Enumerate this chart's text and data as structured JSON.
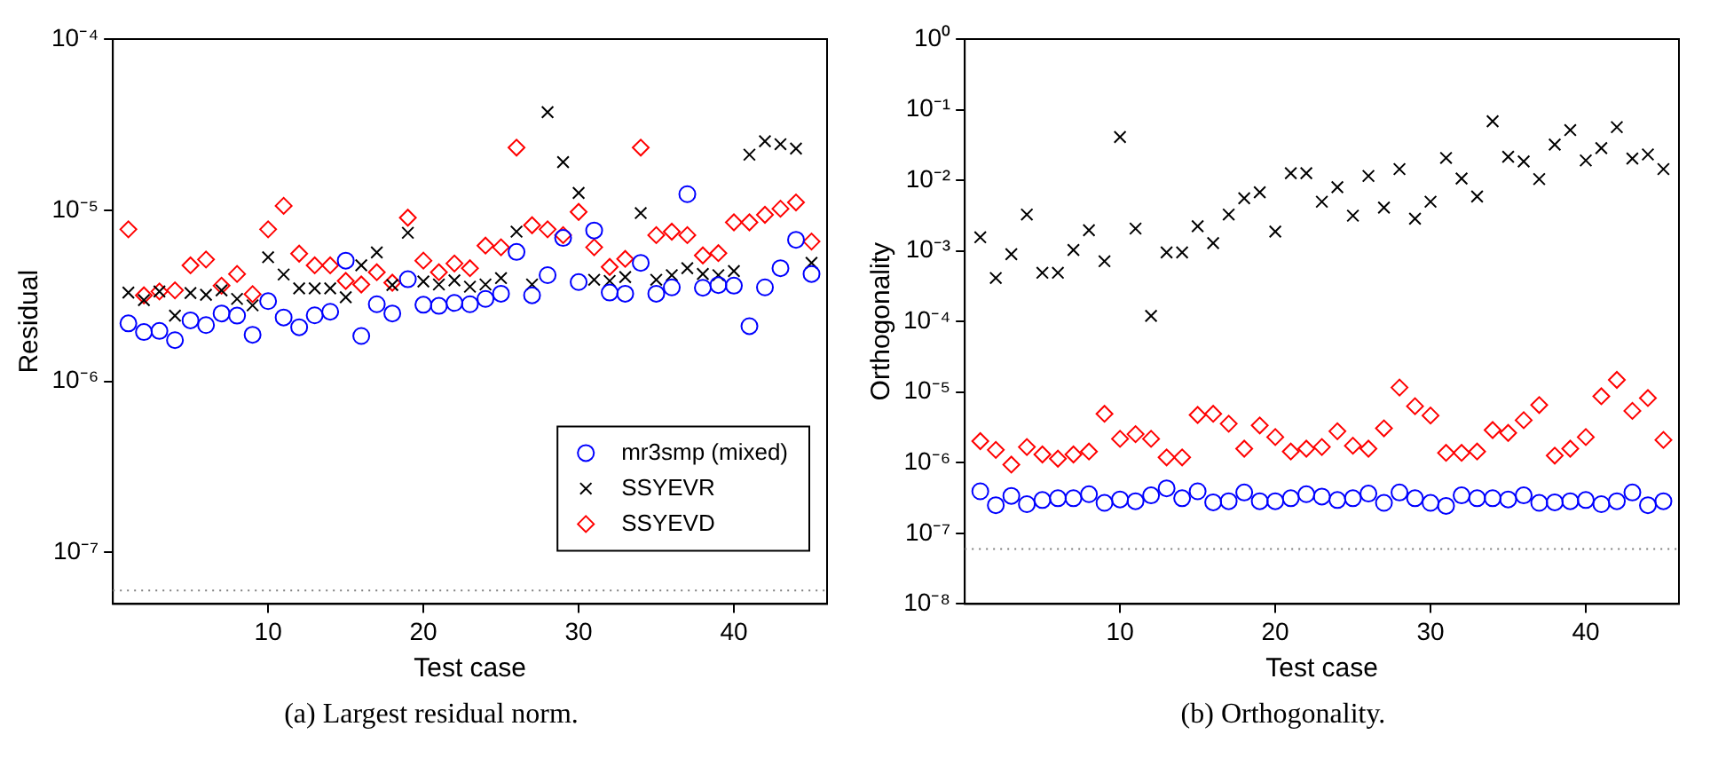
{
  "chart_data": [
    {
      "type": "scatter",
      "xlabel": "Test case",
      "ylabel": "Residual",
      "log": "y",
      "grid": false,
      "legend": "bottom right",
      "annotations": [
        "(a) Largest residual norm."
      ],
      "xlim": [
        0,
        46
      ],
      "xticks": [
        10,
        20,
        30,
        40
      ],
      "ylim": [
        5e-08,
        0.0001
      ],
      "yticks": [
        {
          "value": 1e-07,
          "label": "10⁻⁷"
        },
        {
          "value": 1e-06,
          "label": "10⁻⁶"
        },
        {
          "value": 1e-05,
          "label": "10⁻⁵"
        },
        {
          "value": 0.0001,
          "label": "10⁻⁴"
        }
      ],
      "ref_lines": [
        {
          "axis": "y",
          "value": 6e-08,
          "line_style": "dotted",
          "color": "#808080"
        }
      ],
      "x": [
        1,
        2,
        3,
        4,
        5,
        6,
        7,
        8,
        9,
        10,
        11,
        12,
        13,
        14,
        15,
        16,
        17,
        18,
        19,
        20,
        21,
        22,
        23,
        24,
        25,
        26,
        27,
        28,
        29,
        30,
        31,
        32,
        33,
        34,
        35,
        36,
        37,
        38,
        39,
        40,
        41,
        42,
        43,
        44,
        45
      ],
      "series": [
        {
          "name": "mr3smp (mixed)",
          "color": "#0000ff",
          "marker": "circle",
          "values": [
            2.18e-06,
            1.94e-06,
            1.97e-06,
            1.74e-06,
            2.27e-06,
            2.13e-06,
            2.49e-06,
            2.42e-06,
            1.87e-06,
            2.94e-06,
            2.36e-06,
            2.07e-06,
            2.43e-06,
            2.55e-06,
            5.07e-06,
            1.84e-06,
            2.82e-06,
            2.49e-06,
            3.95e-06,
            2.8e-06,
            2.76e-06,
            2.87e-06,
            2.82e-06,
            3.03e-06,
            3.25e-06,
            5.7e-06,
            3.18e-06,
            4.17e-06,
            6.88e-06,
            3.8e-06,
            7.61e-06,
            3.3e-06,
            3.25e-06,
            4.92e-06,
            3.25e-06,
            3.54e-06,
            1.24e-05,
            3.52e-06,
            3.65e-06,
            3.62e-06,
            2.1e-06,
            3.54e-06,
            4.58e-06,
            6.71e-06,
            4.24e-06
          ]
        },
        {
          "name": "SSYEVR",
          "color": "#000000",
          "marker": "cross",
          "values": [
            3.3e-06,
            2.98e-06,
            3.35e-06,
            2.42e-06,
            3.28e-06,
            3.2e-06,
            3.4e-06,
            3.03e-06,
            2.78e-06,
            5.31e-06,
            4.21e-06,
            3.49e-06,
            3.49e-06,
            3.49e-06,
            3.1e-06,
            4.76e-06,
            5.66e-06,
            3.65e-06,
            7.38e-06,
            3.83e-06,
            3.68e-06,
            3.89e-06,
            3.57e-06,
            3.68e-06,
            4.01e-06,
            7.49e-06,
            3.68e-06,
            3.74e-05,
            1.91e-05,
            1.26e-05,
            3.92e-06,
            3.86e-06,
            4.07e-06,
            9.62e-06,
            3.92e-06,
            4.17e-06,
            4.58e-06,
            4.24e-06,
            4.17e-06,
            4.41e-06,
            2.11e-05,
            2.53e-05,
            2.43e-05,
            2.29e-05,
            4.92e-06
          ]
        },
        {
          "name": "SSYEVD",
          "color": "#ff0000",
          "marker": "diamond",
          "values": [
            7.73e-06,
            3.18e-06,
            3.35e-06,
            3.4e-06,
            4.76e-06,
            5.15e-06,
            3.62e-06,
            4.24e-06,
            3.23e-06,
            7.73e-06,
            1.06e-05,
            5.57e-06,
            4.76e-06,
            4.76e-06,
            3.86e-06,
            3.68e-06,
            4.34e-06,
            3.77e-06,
            9.04e-06,
            5.07e-06,
            4.34e-06,
            4.88e-06,
            4.58e-06,
            6.21e-06,
            6.07e-06,
            2.32e-05,
            8.17e-06,
            7.73e-06,
            7.15e-06,
            9.77e-06,
            6.07e-06,
            4.66e-06,
            5.19e-06,
            2.32e-05,
            7.15e-06,
            7.49e-06,
            7.15e-06,
            5.44e-06,
            5.61e-06,
            8.49e-06,
            8.49e-06,
            9.4e-06,
            1.02e-05,
            1.11e-05,
            6.56e-06
          ]
        }
      ]
    },
    {
      "type": "scatter",
      "xlabel": "Test case",
      "ylabel": "Orthogonality",
      "log": "y",
      "grid": false,
      "annotations": [
        "(b) Orthogonality."
      ],
      "xlim": [
        0,
        46
      ],
      "xticks": [
        10,
        20,
        30,
        40
      ],
      "ylim": [
        1e-08,
        1
      ],
      "yticks": [
        {
          "value": 1e-08,
          "label": "10⁻⁸"
        },
        {
          "value": 1e-07,
          "label": "10⁻⁷"
        },
        {
          "value": 1e-06,
          "label": "10⁻⁶"
        },
        {
          "value": 1e-05,
          "label": "10⁻⁵"
        },
        {
          "value": 0.0001,
          "label": "10⁻⁴"
        },
        {
          "value": 0.001,
          "label": "10⁻³"
        },
        {
          "value": 0.01,
          "label": "10⁻²"
        },
        {
          "value": 0.1,
          "label": "10⁻¹"
        },
        {
          "value": 1,
          "label": "10⁰"
        }
      ],
      "ref_lines": [
        {
          "axis": "y",
          "value": 6e-08,
          "line_style": "dotted",
          "color": "#808080"
        }
      ],
      "x": [
        1,
        2,
        3,
        4,
        5,
        6,
        7,
        8,
        9,
        10,
        11,
        12,
        13,
        14,
        15,
        16,
        17,
        18,
        19,
        20,
        21,
        22,
        23,
        24,
        25,
        26,
        27,
        28,
        29,
        30,
        31,
        32,
        33,
        34,
        35,
        36,
        37,
        38,
        39,
        40,
        41,
        42,
        43,
        44,
        45
      ],
      "series": [
        {
          "color": "#0000ff",
          "marker": "circle",
          "values": [
            3.94e-07,
            2.5e-07,
            3.39e-07,
            2.59e-07,
            2.96e-07,
            3.14e-07,
            3.14e-07,
            3.58e-07,
            2.7e-07,
            3.02e-07,
            2.85e-07,
            3.45e-07,
            4.34e-07,
            3.14e-07,
            3.94e-07,
            2.75e-07,
            2.85e-07,
            3.79e-07,
            2.85e-07,
            2.85e-07,
            3.14e-07,
            3.58e-07,
            3.32e-07,
            2.96e-07,
            3.14e-07,
            3.65e-07,
            2.7e-07,
            3.79e-07,
            3.14e-07,
            2.7e-07,
            2.45e-07,
            3.45e-07,
            3.14e-07,
            3.14e-07,
            3.02e-07,
            3.45e-07,
            2.7e-07,
            2.75e-07,
            2.85e-07,
            2.96e-07,
            2.59e-07,
            2.85e-07,
            3.79e-07,
            2.5e-07,
            2.85e-07
          ]
        },
        {
          "color": "#000000",
          "marker": "cross",
          "values": [
            0.00156,
            0.000413,
            0.000897,
            0.00327,
            0.00049,
            0.00049,
            0.00103,
            0.00196,
            0.000714,
            0.0409,
            0.00207,
            0.00012,
            0.00095,
            0.00095,
            0.00223,
            0.00129,
            0.00327,
            0.00556,
            0.00675,
            0.00188,
            0.0126,
            0.0126,
            0.00497,
            0.008,
            0.00315,
            0.0115,
            0.00411,
            0.0144,
            0.00286,
            0.00497,
            0.0207,
            0.0106,
            0.00589,
            0.0684,
            0.0215,
            0.0185,
            0.0104,
            0.032,
            0.0514,
            0.0191,
            0.0285,
            0.0565,
            0.0203,
            0.0232,
            0.0144
          ]
        },
        {
          "color": "#ff0000",
          "marker": "diamond",
          "values": [
            2.02e-06,
            1.52e-06,
            9.4e-07,
            1.67e-06,
            1.31e-06,
            1.14e-06,
            1.31e-06,
            1.44e-06,
            4.93e-06,
            2.18e-06,
            2.54e-06,
            2.18e-06,
            1.19e-06,
            1.19e-06,
            4.75e-06,
            4.93e-06,
            3.57e-06,
            1.58e-06,
            3.37e-06,
            2.31e-06,
            1.44e-06,
            1.58e-06,
            1.67e-06,
            2.79e-06,
            1.74e-06,
            1.58e-06,
            3.07e-06,
            1.16e-05,
            6.31e-06,
            4.66e-06,
            1.38e-06,
            1.38e-06,
            1.44e-06,
            2.9e-06,
            2.64e-06,
            4e-06,
            6.56e-06,
            1.26e-06,
            1.58e-06,
            2.31e-06,
            8.73e-06,
            1.49e-05,
            5.42e-06,
            8.24e-06,
            2.1e-06
          ]
        }
      ]
    }
  ]
}
